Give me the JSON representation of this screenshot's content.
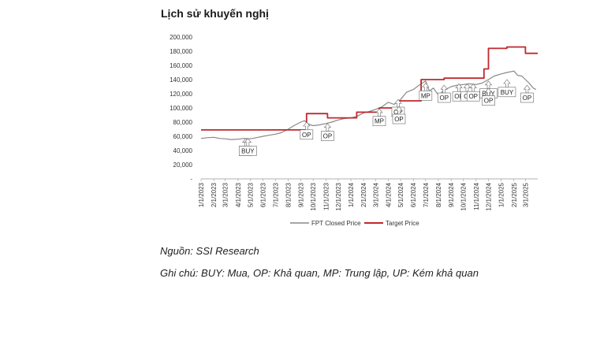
{
  "title": "Lịch sử khuyến nghị",
  "source": "Nguồn: SSI Research",
  "note": "Ghi chú: BUY: Mua, OP: Khả quan, MP: Trung lập, UP: Kém khả quan",
  "chart_data": {
    "type": "line",
    "yticks": [
      "200,000",
      "180,000",
      "160,000",
      "140,000",
      "120,000",
      "100,000",
      "80,000",
      "60,000",
      "40,000",
      "20,000",
      "-"
    ],
    "ylim": [
      0,
      200000
    ],
    "x_ticks": [
      "1/1/2023",
      "2/1/2023",
      "3/1/2023",
      "4/1/2023",
      "5/1/2023",
      "6/1/2023",
      "7/1/2023",
      "8/1/2023",
      "9/1/2023",
      "10/1/2023",
      "11/1/2023",
      "12/1/2023",
      "1/1/2024",
      "2/1/2024",
      "3/1/2024",
      "4/1/2024",
      "5/1/2024",
      "6/1/2024",
      "7/1/2024",
      "8/1/2024",
      "9/1/2024",
      "10/1/2024",
      "11/1/2024",
      "12/1/2024",
      "1/1/2025",
      "2/1/2025",
      "3/1/2025"
    ],
    "series": [
      {
        "name": "FPT Closed Price",
        "color": "#888888",
        "points": [
          [
            "2023-01-01",
            57000
          ],
          [
            "2023-01-15",
            58000
          ],
          [
            "2023-02-01",
            58500
          ],
          [
            "2023-02-15",
            57000
          ],
          [
            "2023-03-01",
            56500
          ],
          [
            "2023-03-15",
            55500
          ],
          [
            "2023-04-01",
            56000
          ],
          [
            "2023-04-15",
            57000
          ],
          [
            "2023-05-01",
            56500
          ],
          [
            "2023-05-15",
            58000
          ],
          [
            "2023-06-01",
            60000
          ],
          [
            "2023-06-15",
            61500
          ],
          [
            "2023-07-01",
            63000
          ],
          [
            "2023-07-15",
            65000
          ],
          [
            "2023-08-01",
            70000
          ],
          [
            "2023-08-15",
            75000
          ],
          [
            "2023-09-01",
            80000
          ],
          [
            "2023-09-10",
            82000
          ],
          [
            "2023-09-20",
            77000
          ],
          [
            "2023-10-01",
            75000
          ],
          [
            "2023-10-15",
            76000
          ],
          [
            "2023-11-01",
            78000
          ],
          [
            "2023-11-15",
            80000
          ],
          [
            "2023-12-01",
            83000
          ],
          [
            "2023-12-15",
            85000
          ],
          [
            "2024-01-01",
            86000
          ],
          [
            "2024-01-15",
            88000
          ],
          [
            "2024-02-01",
            93000
          ],
          [
            "2024-02-15",
            95000
          ],
          [
            "2024-03-01",
            98000
          ],
          [
            "2024-03-15",
            101000
          ],
          [
            "2024-04-01",
            108000
          ],
          [
            "2024-04-15",
            105000
          ],
          [
            "2024-05-01",
            112000
          ],
          [
            "2024-05-15",
            122000
          ],
          [
            "2024-06-01",
            126000
          ],
          [
            "2024-06-15",
            132000
          ],
          [
            "2024-07-01",
            138000
          ],
          [
            "2024-07-10",
            124000
          ],
          [
            "2024-07-20",
            128000
          ],
          [
            "2024-08-01",
            118000
          ],
          [
            "2024-08-15",
            125000
          ],
          [
            "2024-09-01",
            130000
          ],
          [
            "2024-09-15",
            132000
          ],
          [
            "2024-10-01",
            133000
          ],
          [
            "2024-10-15",
            134000
          ],
          [
            "2024-11-01",
            133000
          ],
          [
            "2024-11-15",
            135000
          ],
          [
            "2024-12-01",
            140000
          ],
          [
            "2024-12-15",
            145000
          ],
          [
            "2025-01-01",
            148000
          ],
          [
            "2025-01-15",
            150000
          ],
          [
            "2025-02-01",
            152000
          ],
          [
            "2025-02-10",
            146000
          ],
          [
            "2025-02-20",
            145000
          ],
          [
            "2025-03-01",
            140000
          ],
          [
            "2025-03-10",
            135000
          ],
          [
            "2025-03-20",
            128000
          ],
          [
            "2025-03-27",
            126000
          ]
        ]
      },
      {
        "name": "Target Price",
        "color": "#c0282d",
        "points": [
          [
            "2023-01-01",
            69000
          ],
          [
            "2023-09-15",
            69000
          ],
          [
            "2023-09-15",
            92000
          ],
          [
            "2023-11-05",
            92000
          ],
          [
            "2023-11-05",
            86000
          ],
          [
            "2024-01-15",
            86000
          ],
          [
            "2024-01-15",
            94000
          ],
          [
            "2024-03-10",
            94000
          ],
          [
            "2024-03-10",
            100000
          ],
          [
            "2024-04-25",
            100000
          ],
          [
            "2024-04-25",
            110000
          ],
          [
            "2024-06-20",
            110000
          ],
          [
            "2024-06-20",
            140000
          ],
          [
            "2024-08-15",
            140000
          ],
          [
            "2024-08-15",
            142000
          ],
          [
            "2024-11-20",
            142000
          ],
          [
            "2024-11-20",
            155000
          ],
          [
            "2024-12-01",
            155000
          ],
          [
            "2024-12-01",
            184000
          ],
          [
            "2025-01-15",
            184000
          ],
          [
            "2025-01-15",
            186000
          ],
          [
            "2025-03-01",
            186000
          ],
          [
            "2025-03-01",
            177000
          ],
          [
            "2025-03-31",
            177000
          ]
        ]
      }
    ],
    "annotations": [
      {
        "label": "B",
        "date": "2023-04-20",
        "value": 57000,
        "drop": 12000
      },
      {
        "label": "BUY",
        "date": "2023-04-25",
        "value": 57000,
        "drop": 12000
      },
      {
        "label": "OP",
        "date": "2023-09-15",
        "value": 80000,
        "drop": 12000
      },
      {
        "label": "OP",
        "date": "2023-11-05",
        "value": 78000,
        "drop": 12000
      },
      {
        "label": "MP",
        "date": "2024-03-10",
        "value": 99000,
        "drop": 12000
      },
      {
        "label": "OP",
        "date": "2024-04-25",
        "value": 112000,
        "drop": 12000
      },
      {
        "label": "OP",
        "date": "2024-04-27",
        "value": 102000,
        "drop": 12000
      },
      {
        "label": "MP",
        "date": "2024-07-01",
        "value": 135000,
        "drop": 12000
      },
      {
        "label": "OP",
        "date": "2024-08-15",
        "value": 132000,
        "drop": 12000
      },
      {
        "label": "OP",
        "date": "2024-09-20",
        "value": 134000,
        "drop": 12000
      },
      {
        "label": "OI",
        "date": "2024-10-10",
        "value": 134000,
        "drop": 12000
      },
      {
        "label": "OP",
        "date": "2024-10-25",
        "value": 134000,
        "drop": 12000
      },
      {
        "label": "BUY",
        "date": "2024-12-01",
        "value": 138000,
        "drop": 12000
      },
      {
        "label": "OP",
        "date": "2024-12-01",
        "value": 128000,
        "drop": 12000
      },
      {
        "label": "BUY",
        "date": "2025-01-15",
        "value": 140000,
        "drop": 12000
      },
      {
        "label": "OP",
        "date": "2025-03-05",
        "value": 132000,
        "drop": 12000
      }
    ],
    "legend": "bottom"
  }
}
